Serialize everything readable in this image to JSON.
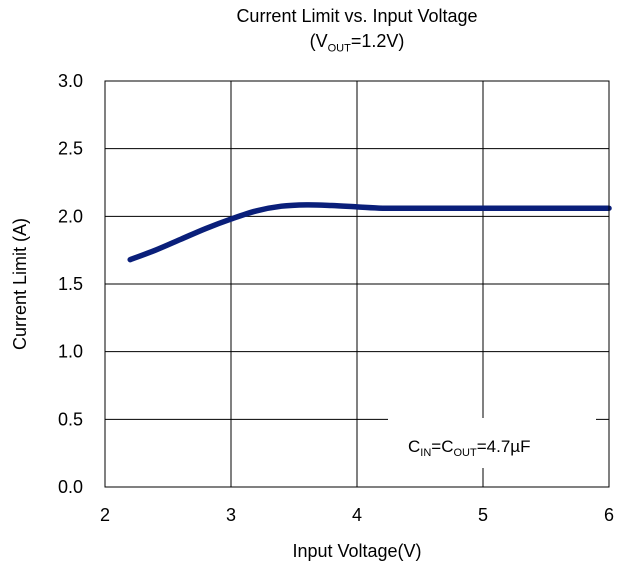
{
  "chart_data": {
    "type": "line",
    "title": "Current Limit vs. Input Voltage",
    "subtitle": {
      "prefix": "(V",
      "sub": "OUT",
      "suffix": "=1.2V)"
    },
    "xlabel": "Input Voltage(V)",
    "ylabel": "Current Limit (A)",
    "xlim": [
      2,
      6
    ],
    "ylim": [
      0,
      3.0
    ],
    "x_ticks": [
      2,
      3,
      4,
      5,
      6
    ],
    "x_tick_labels": [
      "2",
      "3",
      "4",
      "5",
      "6"
    ],
    "y_ticks": [
      0,
      0.5,
      1.0,
      1.5,
      2.0,
      2.5,
      3.0
    ],
    "y_tick_labels": [
      "0.0",
      "0.5",
      "1.0",
      "1.5",
      "2.0",
      "2.5",
      "3.0"
    ],
    "grid": true,
    "annotation": {
      "c1": "C",
      "s1": "IN",
      "mid": "=C",
      "s2": "OUT",
      "tail": "=4.7µF"
    },
    "series": [
      {
        "color": "#0a1f7a",
        "x": [
          2.2,
          2.4,
          2.6,
          2.8,
          3.0,
          3.2,
          3.4,
          3.6,
          3.8,
          4.0,
          4.2,
          4.4,
          4.6,
          5.0,
          5.5,
          6.0
        ],
        "y": [
          1.68,
          1.75,
          1.83,
          1.91,
          1.98,
          2.04,
          2.075,
          2.085,
          2.08,
          2.07,
          2.06,
          2.06,
          2.06,
          2.06,
          2.06,
          2.06
        ]
      }
    ]
  }
}
